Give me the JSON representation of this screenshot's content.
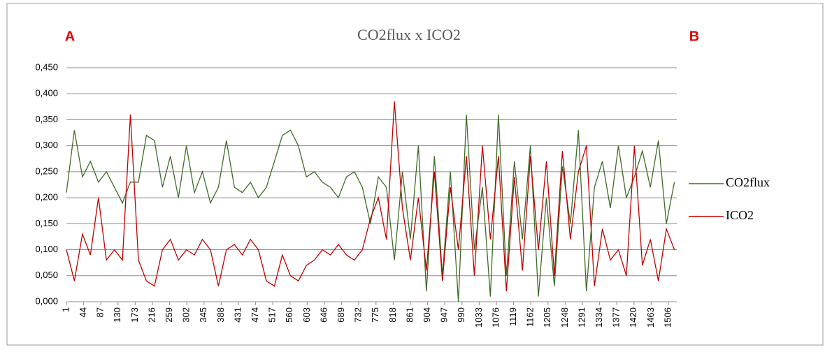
{
  "chart_data": {
    "type": "line",
    "title": "CO2flux x ICO2",
    "annotations": [
      "A",
      "B"
    ],
    "x": [
      1,
      21,
      41,
      61,
      81,
      101,
      121,
      141,
      161,
      181,
      201,
      221,
      241,
      261,
      281,
      301,
      321,
      341,
      361,
      381,
      401,
      421,
      441,
      461,
      481,
      501,
      521,
      541,
      561,
      581,
      601,
      621,
      641,
      661,
      681,
      701,
      721,
      741,
      761,
      781,
      801,
      821,
      841,
      861,
      881,
      901,
      921,
      941,
      961,
      981,
      1001,
      1021,
      1041,
      1061,
      1081,
      1101,
      1121,
      1141,
      1161,
      1181,
      1201,
      1221,
      1241,
      1261,
      1281,
      1301,
      1321,
      1341,
      1361,
      1381,
      1401,
      1421,
      1441,
      1461,
      1481,
      1501,
      1521
    ],
    "series": [
      {
        "name": "CO2flux",
        "color": "#3e6b26",
        "values": [
          0.21,
          0.33,
          0.24,
          0.27,
          0.23,
          0.25,
          0.22,
          0.19,
          0.23,
          0.23,
          0.32,
          0.31,
          0.22,
          0.28,
          0.2,
          0.3,
          0.21,
          0.25,
          0.19,
          0.22,
          0.31,
          0.22,
          0.21,
          0.23,
          0.2,
          0.22,
          0.27,
          0.32,
          0.33,
          0.3,
          0.24,
          0.25,
          0.23,
          0.22,
          0.2,
          0.24,
          0.25,
          0.22,
          0.15,
          0.24,
          0.22,
          0.08,
          0.25,
          0.12,
          0.3,
          0.02,
          0.28,
          0.05,
          0.25,
          0.0,
          0.36,
          0.1,
          0.22,
          0.01,
          0.36,
          0.05,
          0.27,
          0.12,
          0.3,
          0.01,
          0.2,
          0.03,
          0.26,
          0.15,
          0.33,
          0.02,
          0.22,
          0.27,
          0.18,
          0.3,
          0.2,
          0.24,
          0.29,
          0.22,
          0.31,
          0.15,
          0.23
        ]
      },
      {
        "name": "ICO2",
        "color": "#c00000",
        "values": [
          0.1,
          0.04,
          0.13,
          0.09,
          0.2,
          0.08,
          0.1,
          0.08,
          0.36,
          0.08,
          0.04,
          0.03,
          0.1,
          0.12,
          0.08,
          0.1,
          0.09,
          0.12,
          0.1,
          0.03,
          0.1,
          0.11,
          0.09,
          0.12,
          0.1,
          0.04,
          0.03,
          0.09,
          0.05,
          0.04,
          0.07,
          0.08,
          0.1,
          0.09,
          0.11,
          0.09,
          0.08,
          0.1,
          0.16,
          0.2,
          0.12,
          0.385,
          0.18,
          0.08,
          0.2,
          0.06,
          0.25,
          0.04,
          0.22,
          0.1,
          0.28,
          0.05,
          0.3,
          0.12,
          0.28,
          0.02,
          0.24,
          0.06,
          0.28,
          0.1,
          0.27,
          0.05,
          0.29,
          0.12,
          0.25,
          0.3,
          0.03,
          0.14,
          0.08,
          0.1,
          0.05,
          0.3,
          0.07,
          0.12,
          0.04,
          0.14,
          0.1
        ]
      }
    ],
    "xlim": [
      1,
      1527
    ],
    "xticks": [
      1,
      44,
      87,
      130,
      173,
      216,
      259,
      302,
      345,
      388,
      431,
      474,
      517,
      560,
      603,
      646,
      689,
      732,
      775,
      818,
      861,
      904,
      947,
      990,
      1033,
      1076,
      1119,
      1162,
      1205,
      1248,
      1291,
      1334,
      1377,
      1420,
      1463,
      1506
    ],
    "ylim": [
      0,
      0.45
    ],
    "yticks": [
      {
        "value": 0,
        "label": "0,000"
      },
      {
        "value": 0.05,
        "label": "0,050"
      },
      {
        "value": 0.1,
        "label": "0,100"
      },
      {
        "value": 0.15,
        "label": "0,150"
      },
      {
        "value": 0.2,
        "label": "0,200"
      },
      {
        "value": 0.25,
        "label": "0,250"
      },
      {
        "value": 0.3,
        "label": "0,300"
      },
      {
        "value": 0.35,
        "label": "0,350"
      },
      {
        "value": 0.4,
        "label": "0,400"
      },
      {
        "value": 0.45,
        "label": "0,450"
      }
    ],
    "grid": true,
    "legend": "right"
  }
}
